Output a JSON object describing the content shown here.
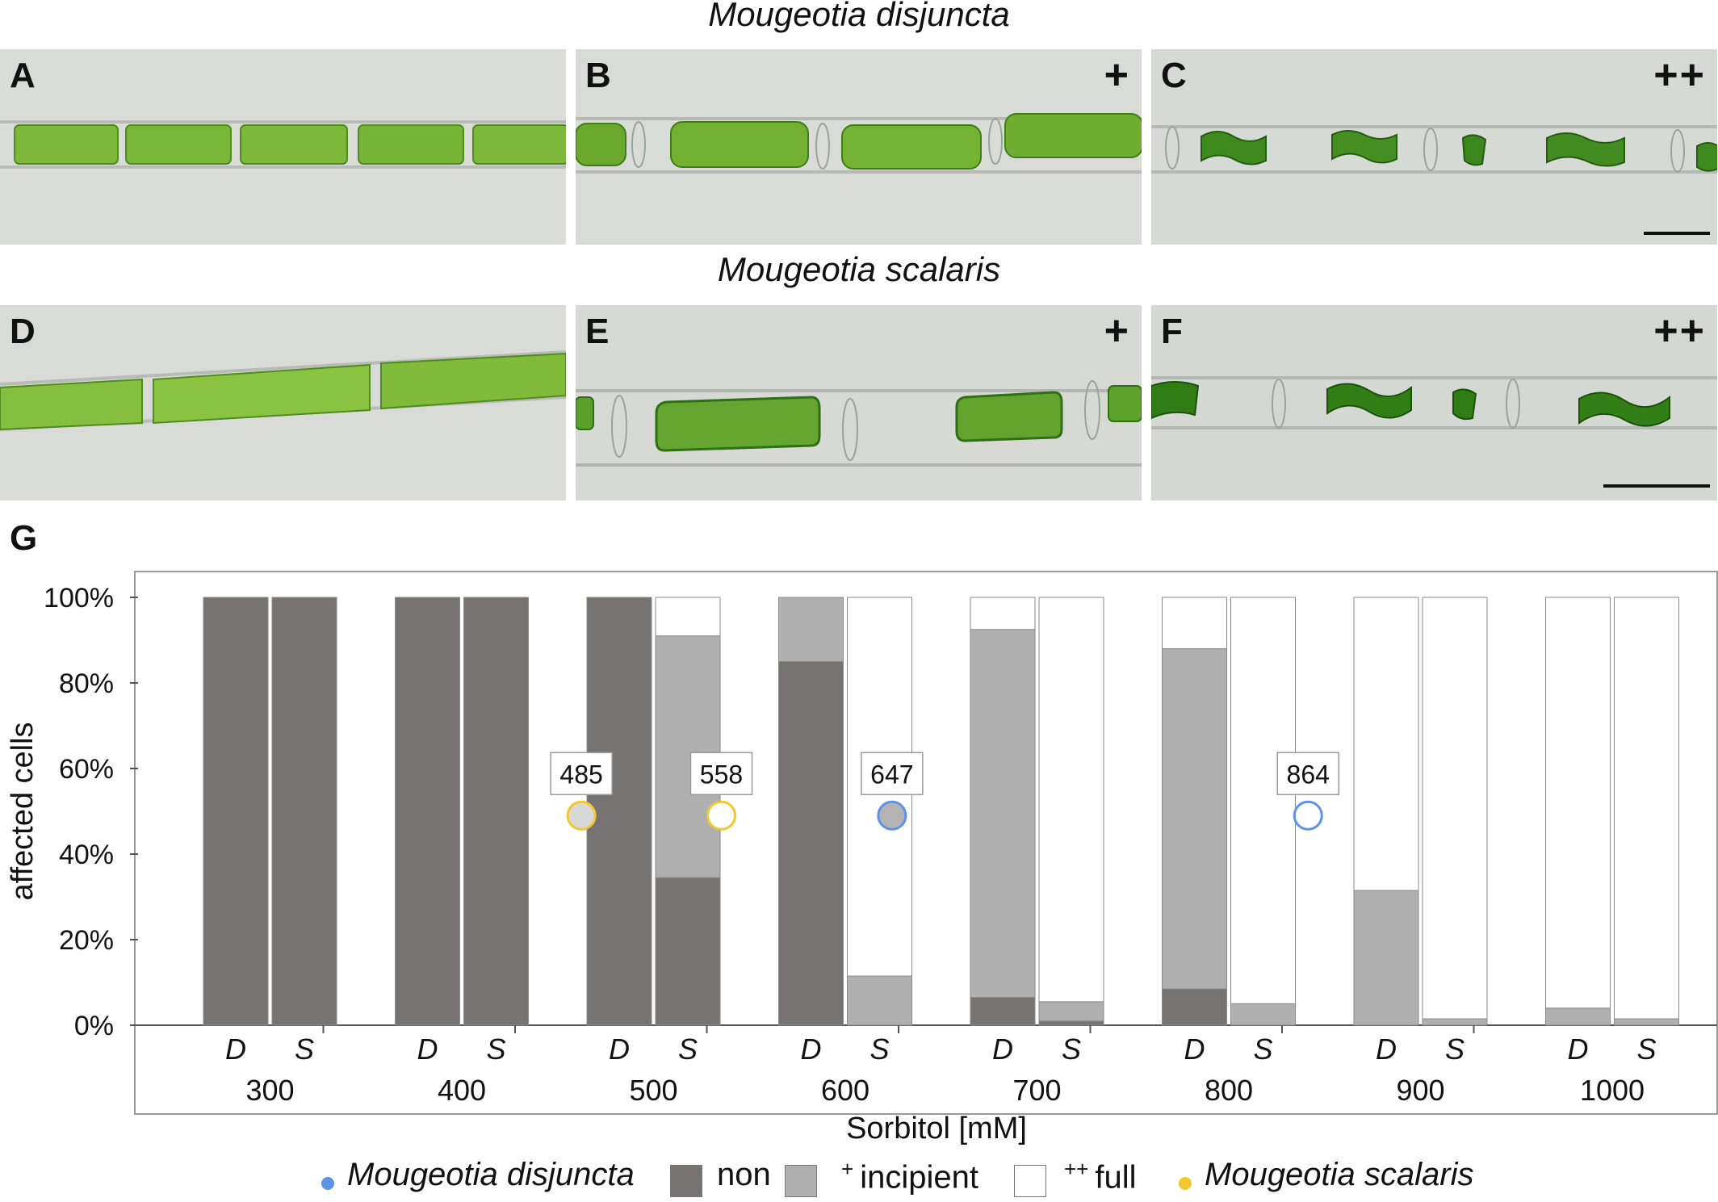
{
  "figure": {
    "title_top": "Mougeotia disjuncta",
    "title_mid": "Mougeotia scalaris",
    "panels": [
      {
        "letter": "A",
        "sign": ""
      },
      {
        "letter": "B",
        "sign": "+"
      },
      {
        "letter": "C",
        "sign": "++"
      },
      {
        "letter": "D",
        "sign": ""
      },
      {
        "letter": "E",
        "sign": "+"
      },
      {
        "letter": "F",
        "sign": "++"
      }
    ],
    "chart_letter": "G"
  },
  "chart_data": {
    "type": "bar",
    "stacked": true,
    "ylabel": "affected cells",
    "xlabel": "Sorbitol [mM]",
    "ylim": [
      0,
      100
    ],
    "yticks": [
      "0%",
      "20%",
      "40%",
      "60%",
      "80%",
      "100%"
    ],
    "groups": [
      "300",
      "400",
      "500",
      "600",
      "700",
      "800",
      "900",
      "1000"
    ],
    "bar_labels": [
      "D",
      "S"
    ],
    "series": [
      {
        "name": "non",
        "color": "#787373",
        "D": [
          100,
          100,
          100,
          85,
          6.5,
          8.5,
          0,
          0
        ],
        "S": [
          100,
          100,
          34.5,
          0,
          1,
          0,
          0,
          0
        ]
      },
      {
        "name": "incipient",
        "prefix": "+",
        "color": "#b0b0b0",
        "D": [
          0,
          0,
          0,
          15,
          86,
          79.5,
          31.5,
          4
        ],
        "S": [
          0,
          0,
          56.5,
          11.5,
          4.5,
          5,
          1.5,
          1.5
        ]
      },
      {
        "name": "full",
        "prefix": "++",
        "color": "#ffffff",
        "D": [
          0,
          0,
          0,
          0,
          7.5,
          12,
          68.5,
          96
        ],
        "S": [
          0,
          0,
          9,
          88.5,
          94.5,
          95,
          98.5,
          98.5
        ]
      }
    ],
    "markers": [
      {
        "label": "485",
        "x": 485,
        "y": 49,
        "species": "Mougeotia scalaris",
        "color": "#f2c72e",
        "fill": "#d8d8d8"
      },
      {
        "label": "558",
        "x": 558,
        "y": 49,
        "species": "Mougeotia scalaris",
        "color": "#f2c72e",
        "fill": "#ffffff"
      },
      {
        "label": "647",
        "x": 647,
        "y": 49,
        "species": "Mougeotia disjuncta",
        "color": "#5b93e8",
        "fill": "#b4b4b4"
      },
      {
        "label": "864",
        "x": 864,
        "y": 49,
        "species": "Mougeotia disjuncta",
        "color": "#5b93e8",
        "fill": "#ffffff"
      }
    ],
    "legend": {
      "disjuncta": "Mougeotia disjuncta",
      "non": "non",
      "incipient_sup": "+",
      "incipient": "incipient",
      "full_sup": "++",
      "full": "full",
      "scalaris": "Mougeotia scalaris",
      "disjuncta_color": "#5b93e8",
      "scalaris_color": "#f2c72e"
    }
  }
}
